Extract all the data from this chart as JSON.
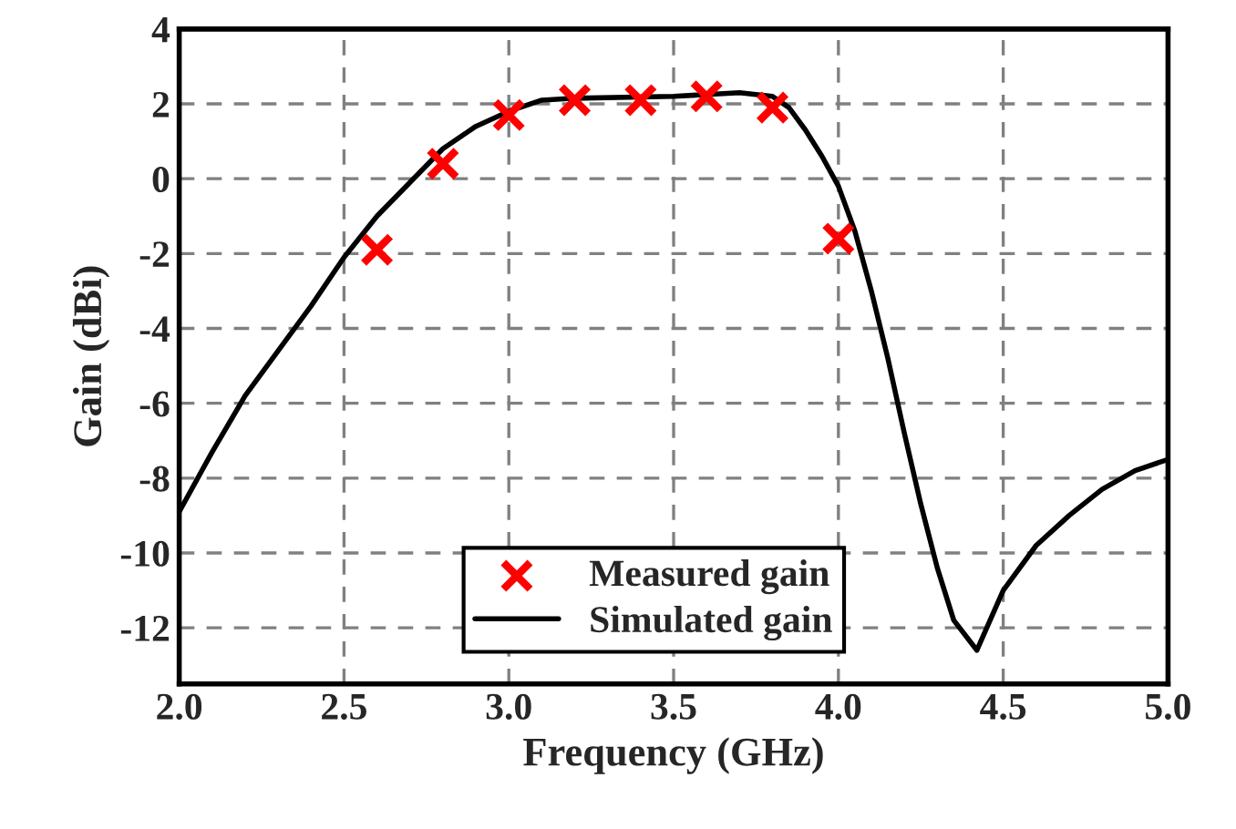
{
  "chart_data": {
    "type": "line",
    "xlabel": "Frequency (GHz)",
    "ylabel": "Gain (dBi)",
    "xlim": [
      2.0,
      5.0
    ],
    "xticks": [
      {
        "value": 2.0,
        "label": "2.0"
      },
      {
        "value": 2.5,
        "label": "2.5"
      },
      {
        "value": 3.0,
        "label": "3.0"
      },
      {
        "value": 3.5,
        "label": "3.5"
      },
      {
        "value": 4.0,
        "label": "4.0"
      },
      {
        "value": 4.5,
        "label": "4.5"
      },
      {
        "value": 5.0,
        "label": "5.0"
      }
    ],
    "ylim": [
      -13.5,
      4
    ],
    "yticks": [
      -12,
      -10,
      -8,
      -6,
      -4,
      -2,
      0,
      2,
      4
    ],
    "grid": true,
    "legend": "bottom",
    "series": [
      {
        "name": "Measured gain",
        "type": "scatter",
        "marker": "cross",
        "color": "#ff0000",
        "x": [
          2.6,
          2.8,
          3.0,
          3.2,
          3.4,
          3.6,
          3.8,
          4.0
        ],
        "values": [
          -1.9,
          0.4,
          1.7,
          2.1,
          2.1,
          2.2,
          1.9,
          -1.6
        ]
      },
      {
        "name": "Simulated gain",
        "marker": "none",
        "line_style": "solid",
        "color": "#000000",
        "x": [
          2.0,
          2.1,
          2.2,
          2.3,
          2.4,
          2.5,
          2.6,
          2.7,
          2.8,
          2.9,
          3.0,
          3.1,
          3.2,
          3.5,
          3.7,
          3.8,
          3.85,
          3.9,
          3.95,
          4.0,
          4.05,
          4.1,
          4.15,
          4.2,
          4.25,
          4.3,
          4.35,
          4.42,
          4.5,
          4.6,
          4.7,
          4.8,
          4.9,
          5.0
        ],
        "values": [
          -8.9,
          -7.3,
          -5.8,
          -4.6,
          -3.4,
          -2.1,
          -1.0,
          -0.1,
          0.8,
          1.4,
          1.8,
          2.1,
          2.15,
          2.2,
          2.3,
          2.2,
          1.9,
          1.3,
          0.6,
          -0.2,
          -1.4,
          -3.0,
          -4.8,
          -6.8,
          -8.7,
          -10.4,
          -11.8,
          -12.6,
          -11.0,
          -9.8,
          -9.0,
          -8.3,
          -7.8,
          -7.5
        ]
      }
    ]
  }
}
